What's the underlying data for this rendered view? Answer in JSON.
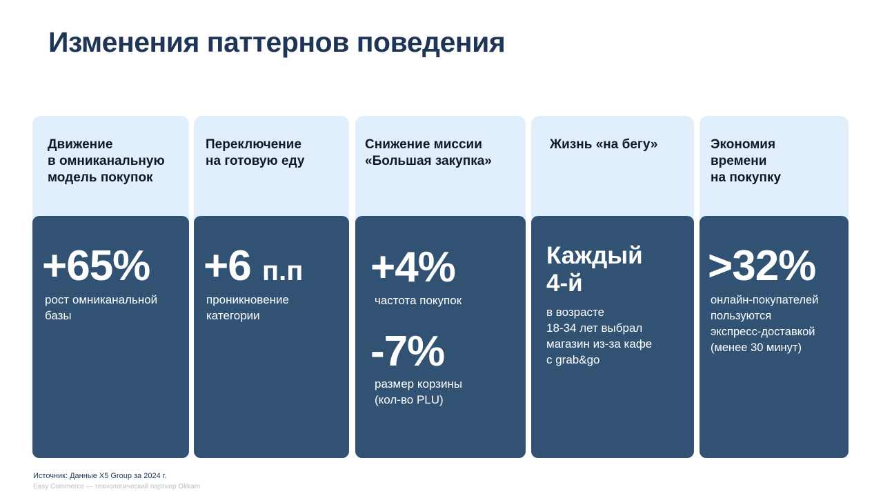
{
  "title": "Изменения паттернов поведения",
  "cards": [
    {
      "heading": "Движение\nв омниканальную\nмодель покупок",
      "value": "+65%",
      "description": "рост омниканальной\nбазы"
    },
    {
      "heading": "Переключение\nна готовую еду",
      "value": "+6",
      "unit": "п.п",
      "description": "проникновение\nкатегории"
    },
    {
      "heading": "Снижение миссии\n«Большая закупка»",
      "value": "+4%",
      "description": "частота покупок",
      "value2": "-7%",
      "description2": "размер корзины\n(кол-во PLU)"
    },
    {
      "heading": "Жизнь «на бегу»",
      "value": "Каждый\n4-й",
      "description": "в возрасте\n18-34 лет выбрал\nмагазин из-за кафе\nс grab&go"
    },
    {
      "heading": "Экономия\nвремени\nна покупку",
      "value": ">32%",
      "description": "онлайн-покупателей\nпользуются\nэкспресс-доставкой\n(менее 30 минут)"
    }
  ],
  "footer": {
    "source": "Источник: Данные X5 Group за 2024 г.",
    "credit": "Easy Commerce — технологический партнер Okkam"
  }
}
